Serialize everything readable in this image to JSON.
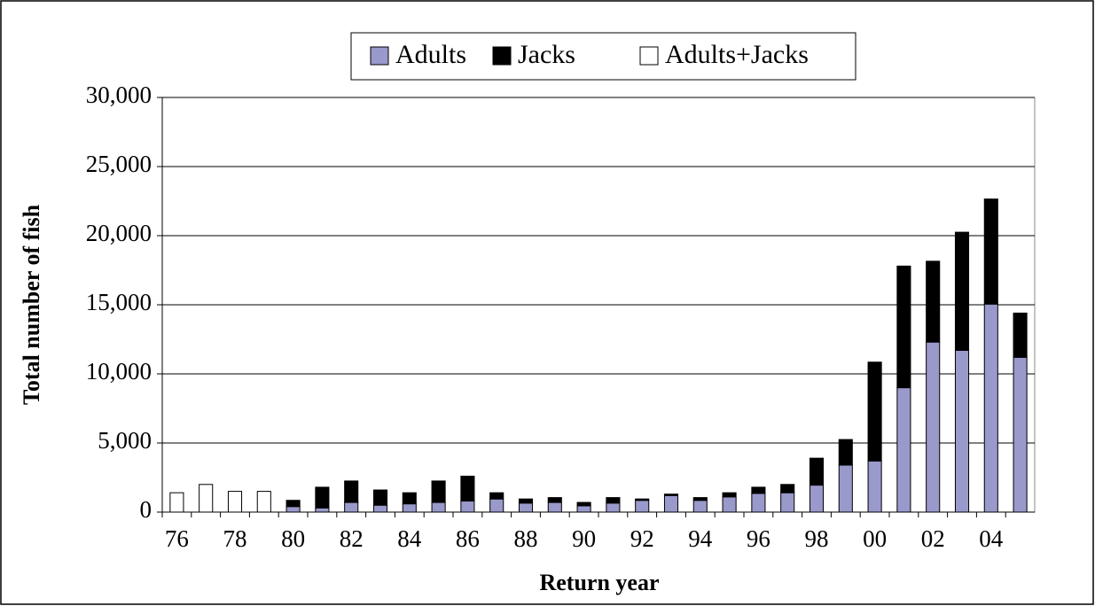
{
  "chart_data": {
    "type": "stacked-bar",
    "x_label": "Return year",
    "y_label": "Total number of fish",
    "categories": [
      "76",
      null,
      "78",
      null,
      "80",
      null,
      "82",
      null,
      "84",
      null,
      "86",
      null,
      "88",
      null,
      "90",
      null,
      "92",
      null,
      "94",
      null,
      "96",
      null,
      "98",
      null,
      "00",
      null,
      "02",
      null,
      "04",
      null
    ],
    "series": [
      {
        "name": "Adults",
        "color": "#9999cc",
        "values": [
          null,
          null,
          null,
          null,
          400,
          300,
          700,
          500,
          600,
          700,
          800,
          950,
          650,
          700,
          450,
          650,
          850,
          1200,
          850,
          1100,
          1350,
          1400,
          1950,
          3400,
          3700,
          9000,
          12300,
          11700,
          15050,
          11200
        ]
      },
      {
        "name": "Jacks",
        "color": "#000000",
        "values": [
          null,
          null,
          null,
          null,
          450,
          1500,
          1550,
          1100,
          800,
          1550,
          1800,
          450,
          300,
          350,
          250,
          400,
          100,
          100,
          200,
          300,
          450,
          600,
          1950,
          1850,
          7150,
          8800,
          5850,
          8550,
          7600,
          3200
        ]
      },
      {
        "name": "Adults+Jacks",
        "color": "#ffffff",
        "values": [
          1400,
          2000,
          1500,
          1500,
          null,
          null,
          null,
          null,
          null,
          null,
          null,
          null,
          null,
          null,
          null,
          null,
          null,
          null,
          null,
          null,
          null,
          null,
          null,
          null,
          null,
          null,
          null,
          null,
          null,
          null
        ]
      }
    ],
    "ylim": [
      0,
      30000
    ],
    "yticks": [
      0,
      {
        "value": 5000,
        "label": "5,000"
      },
      {
        "value": 10000,
        "label": "10,000"
      },
      {
        "value": 15000,
        "label": "15,000"
      },
      {
        "value": 20000,
        "label": "20,000"
      },
      {
        "value": 25000,
        "label": "25,000"
      },
      {
        "value": 30000,
        "label": "30,000"
      }
    ],
    "grid": true,
    "legend": "top"
  }
}
